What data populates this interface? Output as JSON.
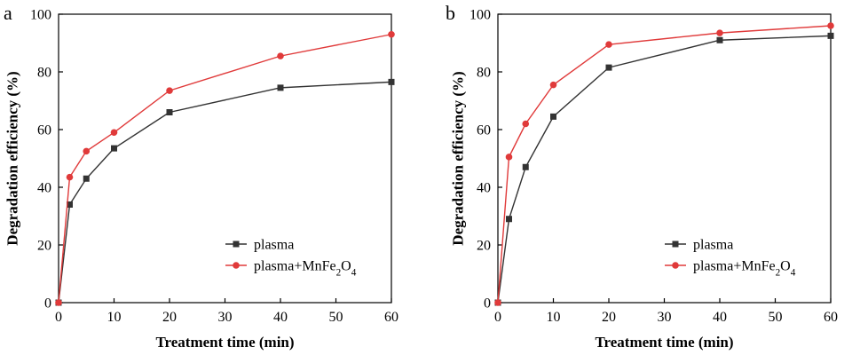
{
  "chart_data": [
    {
      "panel_label": "a",
      "type": "line",
      "xlabel": "Treatment time (min)",
      "ylabel": "Degradation efficiency (%)",
      "xlim": [
        0,
        60
      ],
      "ylim": [
        0,
        100
      ],
      "xticks": [
        0,
        10,
        20,
        30,
        40,
        50,
        60
      ],
      "yticks": [
        0,
        20,
        40,
        60,
        80,
        100
      ],
      "grid": false,
      "legend_position": "bottom-right",
      "x": [
        0,
        2,
        5,
        10,
        20,
        40,
        60
      ],
      "series": [
        {
          "name": "plasma",
          "name_html": "plasma",
          "marker": "square",
          "color": "#333333",
          "values": [
            0,
            34,
            43,
            53.5,
            66,
            74.5,
            76.5
          ]
        },
        {
          "name": "plasma+MnFe2O4",
          "name_html": "plasma+MnFe<tspan baseline-shift='sub' font-size='70%'>2</tspan>O<tspan baseline-shift='sub' font-size='70%'>4</tspan>",
          "marker": "circle",
          "color": "#e03a3a",
          "values": [
            0,
            43.5,
            52.5,
            59,
            73.5,
            85.5,
            93
          ]
        }
      ]
    },
    {
      "panel_label": "b",
      "type": "line",
      "xlabel": "Treatment time (min)",
      "ylabel": "Degradation efficiency (%)",
      "xlim": [
        0,
        60
      ],
      "ylim": [
        0,
        100
      ],
      "xticks": [
        0,
        10,
        20,
        30,
        40,
        50,
        60
      ],
      "yticks": [
        0,
        20,
        40,
        60,
        80,
        100
      ],
      "grid": false,
      "legend_position": "bottom-right",
      "x": [
        0,
        2,
        5,
        10,
        20,
        40,
        60
      ],
      "series": [
        {
          "name": "plasma",
          "name_html": "plasma",
          "marker": "square",
          "color": "#333333",
          "values": [
            0,
            29,
            47,
            64.5,
            81.5,
            91,
            92.5
          ]
        },
        {
          "name": "plasma+MnFe2O4",
          "name_html": "plasma+MnFe<tspan baseline-shift='sub' font-size='70%'>2</tspan>O<tspan baseline-shift='sub' font-size='70%'>4</tspan>",
          "marker": "circle",
          "color": "#e03a3a",
          "values": [
            0,
            50.5,
            62,
            75.5,
            89.5,
            93.5,
            96
          ]
        }
      ]
    }
  ]
}
